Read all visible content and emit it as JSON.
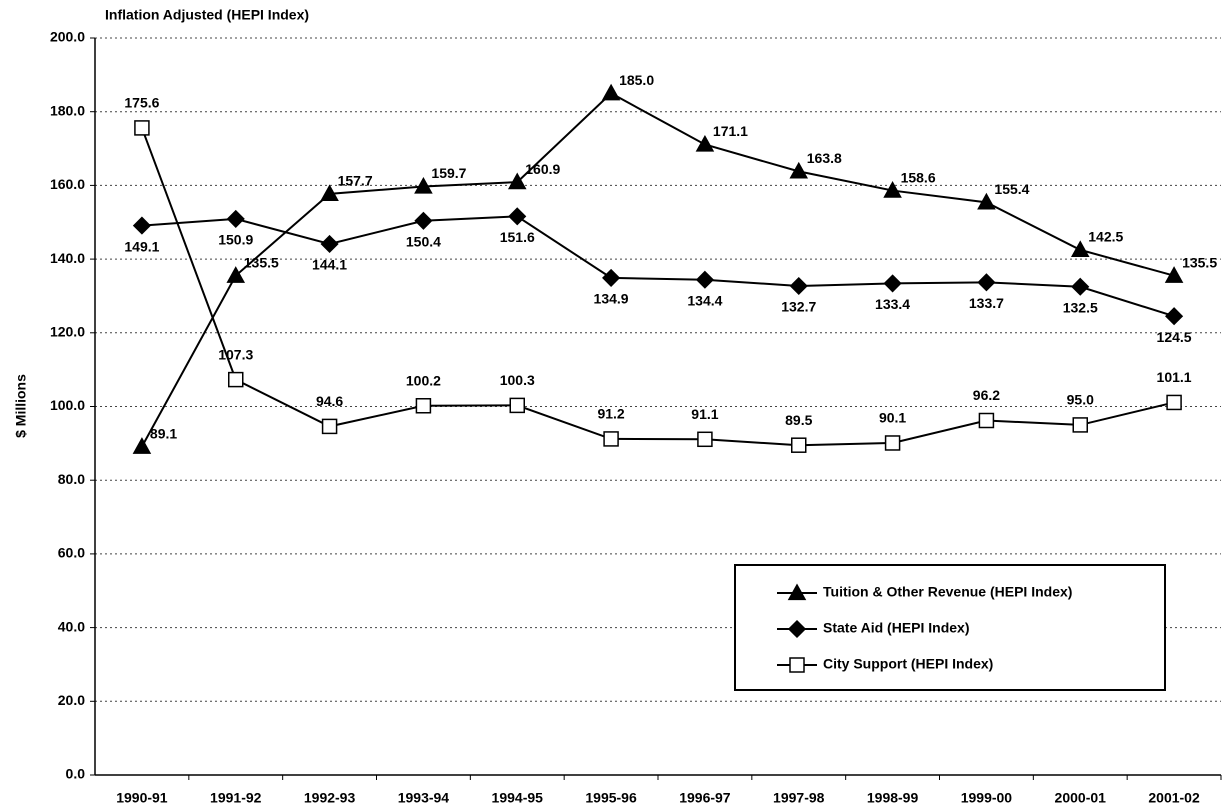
{
  "chart_data": {
    "type": "line",
    "title": "Inflation Adjusted (HEPI Index)",
    "ylabel": "$ Millions",
    "categories": [
      "1990-91",
      "1991-92",
      "1992-93",
      "1993-94",
      "1994-95",
      "1995-96",
      "1996-97",
      "1997-98",
      "1998-99",
      "1999-00",
      "2000-01",
      "2001-02"
    ],
    "ylim": [
      0,
      200
    ],
    "yticks": [
      {
        "value": 0,
        "label": "0.0"
      },
      {
        "value": 20,
        "label": "20.0"
      },
      {
        "value": 40,
        "label": "40.0"
      },
      {
        "value": 60,
        "label": "60.0"
      },
      {
        "value": 80,
        "label": "80.0"
      },
      {
        "value": 100,
        "label": "100.0"
      },
      {
        "value": 120,
        "label": "120.0"
      },
      {
        "value": 140,
        "label": "140.0"
      },
      {
        "value": 160,
        "label": "160.0"
      },
      {
        "value": 180,
        "label": "180.0"
      },
      {
        "value": 200,
        "label": "200.0"
      }
    ],
    "grid": true,
    "legend": "lower right",
    "series": [
      {
        "name": "Tuition & Other Revenue (HEPI Index)",
        "color": "#000000",
        "marker": "triangle",
        "marker_fill": "#000000",
        "values": [
          89.1,
          135.5,
          157.7,
          159.7,
          160.9,
          185.0,
          171.1,
          163.8,
          158.6,
          155.4,
          142.5,
          135.5
        ],
        "value_labels": [
          "89.1",
          "135.5",
          "157.7",
          "159.7",
          "160.9",
          "185.0",
          "171.1",
          "163.8",
          "158.6",
          "155.4",
          "142.5",
          "135.5"
        ]
      },
      {
        "name": "State Aid (HEPI Index)",
        "color": "#000000",
        "marker": "diamond",
        "marker_fill": "#000000",
        "values": [
          149.1,
          150.9,
          144.1,
          150.4,
          151.6,
          134.9,
          134.4,
          132.7,
          133.4,
          133.7,
          132.5,
          124.5
        ],
        "value_labels": [
          "149.1",
          "150.9",
          "144.1",
          "150.4",
          "151.6",
          "134.9",
          "134.4",
          "132.7",
          "133.4",
          "133.7",
          "132.5",
          "124.5"
        ]
      },
      {
        "name": "City Support (HEPI Index)",
        "color": "#000000",
        "marker": "square",
        "marker_fill": "#ffffff",
        "values": [
          175.6,
          107.3,
          94.6,
          100.2,
          100.3,
          91.2,
          91.1,
          89.5,
          90.1,
          96.2,
          95.0,
          101.1
        ],
        "value_labels": [
          "175.6",
          "107.3",
          "94.6",
          "100.2",
          "100.3",
          "91.2",
          "91.1",
          "89.5",
          "90.1",
          "96.2",
          "95.0",
          "101.1"
        ]
      }
    ]
  }
}
